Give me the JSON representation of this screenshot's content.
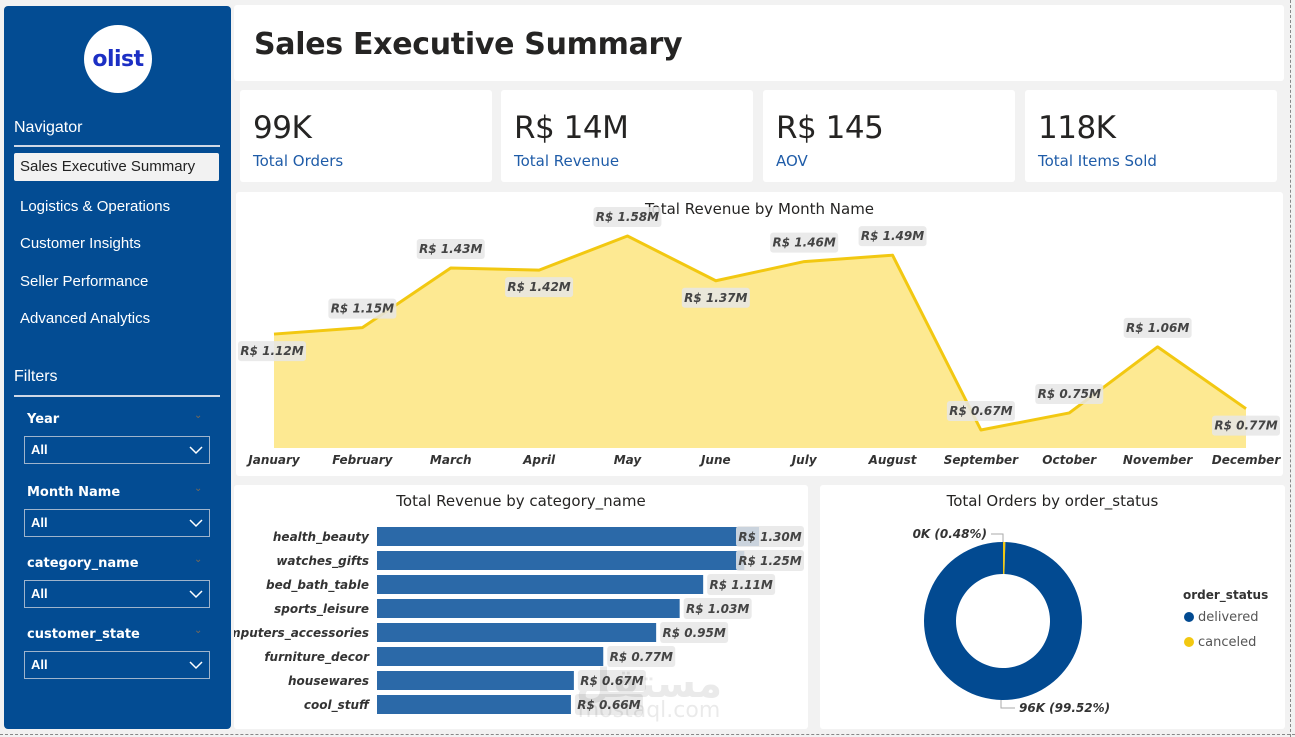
{
  "sidebar": {
    "logo_text": "olist",
    "navigator_title": "Navigator",
    "nav_items": [
      {
        "label": "Sales Executive Summary",
        "active": true
      },
      {
        "label": "Logistics & Operations",
        "active": false
      },
      {
        "label": "Customer Insights",
        "active": false
      },
      {
        "label": "Seller Performance",
        "active": false
      },
      {
        "label": "Advanced Analytics",
        "active": false
      }
    ],
    "filters_title": "Filters",
    "filters": [
      {
        "label": "Year",
        "value": "All"
      },
      {
        "label": "Month Name",
        "value": "All"
      },
      {
        "label": "category_name",
        "value": "All"
      },
      {
        "label": "customer_state",
        "value": "All"
      }
    ]
  },
  "header": {
    "title": "Sales Executive Summary"
  },
  "kpis": [
    {
      "value": "99K",
      "label": "Total Orders"
    },
    {
      "value": "R$ 14M",
      "label": "Total Revenue"
    },
    {
      "value": "R$ 145",
      "label": "AOV"
    },
    {
      "value": "118K",
      "label": "Total Items Sold"
    }
  ],
  "colors": {
    "sidebar": "#034c93",
    "accent_yellow": "#f2c811",
    "area_fill": "#fde992",
    "bar_blue": "#2b69a8",
    "donut_blue": "#024a91",
    "kpi_label": "#1f5ca8"
  },
  "chart_data": [
    {
      "type": "area",
      "title": "Total Revenue by Month Name",
      "categories": [
        "January",
        "February",
        "March",
        "April",
        "May",
        "June",
        "July",
        "August",
        "September",
        "October",
        "November",
        "December"
      ],
      "values": [
        1.12,
        1.15,
        1.43,
        1.42,
        1.58,
        1.37,
        1.46,
        1.49,
        0.67,
        0.75,
        1.06,
        0.77
      ],
      "labels": [
        "R$ 1.12M",
        "R$ 1.15M",
        "R$ 1.43M",
        "R$ 1.42M",
        "R$ 1.58M",
        "R$ 1.37M",
        "R$ 1.46M",
        "R$ 1.49M",
        "R$ 0.67M",
        "R$ 0.75M",
        "R$ 1.06M",
        "R$ 0.77M"
      ],
      "unit": "R$ M",
      "xlabel": "",
      "ylabel": "",
      "ylim": [
        0.6,
        1.62
      ],
      "grid": false
    },
    {
      "type": "bar",
      "orientation": "horizontal",
      "title": "Total Revenue by category_name",
      "categories": [
        "health_beauty",
        "watches_gifts",
        "bed_bath_table",
        "sports_leisure",
        "computers_accessories",
        "furniture_decor",
        "housewares",
        "cool_stuff"
      ],
      "values": [
        1.3,
        1.25,
        1.11,
        1.03,
        0.95,
        0.77,
        0.67,
        0.66
      ],
      "labels": [
        "R$ 1.30M",
        "R$ 1.25M",
        "R$ 1.11M",
        "R$ 1.03M",
        "R$ 0.95M",
        "R$ 0.77M",
        "R$ 0.67M",
        "R$ 0.66M"
      ],
      "unit": "R$ M",
      "xlim": [
        0,
        1.3
      ],
      "grid": false
    },
    {
      "type": "pie",
      "variant": "donut",
      "title": "Total Orders by order_status",
      "legend_title": "order_status",
      "legend_position": "right",
      "slices": [
        {
          "name": "delivered",
          "percent": 99.52,
          "label": "96K (99.52%)",
          "color": "#024a91"
        },
        {
          "name": "canceled",
          "percent": 0.48,
          "label": "0K (0.48%)",
          "color": "#f2c811"
        }
      ]
    }
  ],
  "watermark": {
    "arabic": "مستقل",
    "latin": "mostaql.com"
  }
}
